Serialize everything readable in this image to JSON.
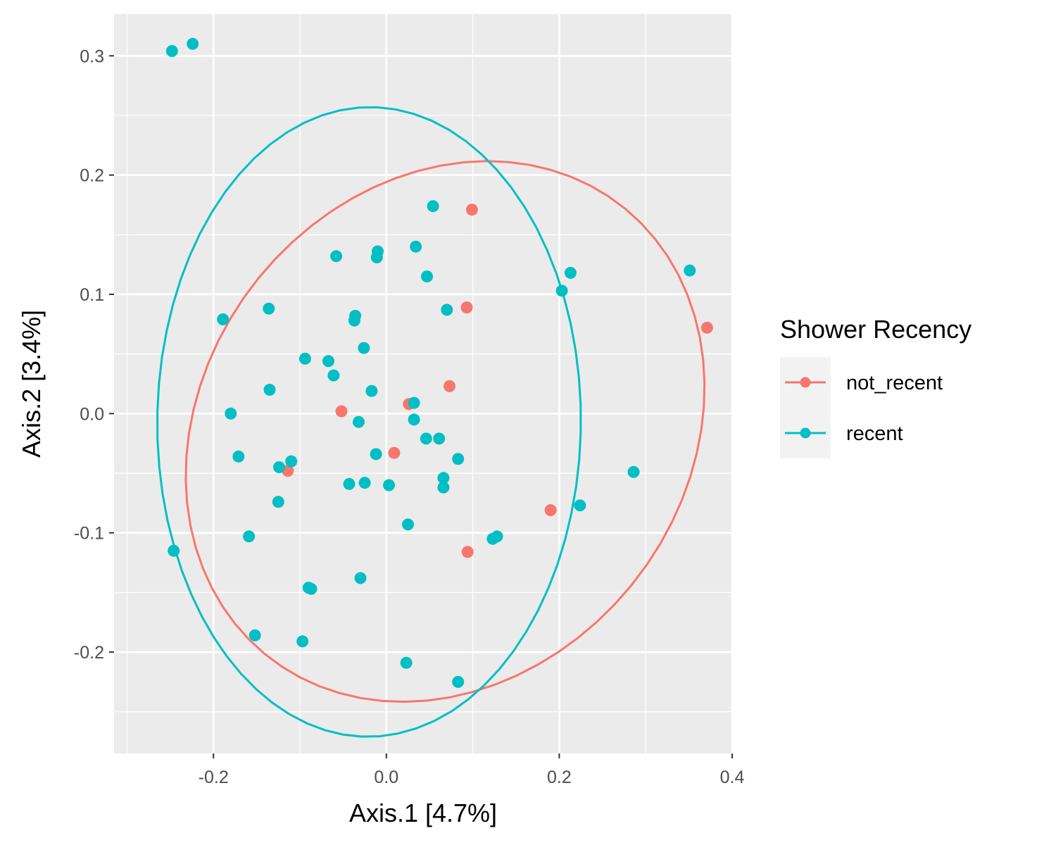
{
  "chart_data": {
    "type": "scatter",
    "title": "",
    "xlabel": "Axis.1   [4.7%]",
    "ylabel": "Axis.2   [3.4%]",
    "xlim": [
      -0.315,
      0.4
    ],
    "ylim": [
      -0.285,
      0.335
    ],
    "x_ticks": [
      -0.2,
      0.0,
      0.2,
      0.4
    ],
    "x_tick_labels": [
      "-0.2",
      "0.0",
      "0.2",
      "0.4"
    ],
    "y_ticks": [
      -0.2,
      -0.1,
      0.0,
      0.1,
      0.2,
      0.3
    ],
    "y_tick_labels": [
      "-0.2",
      "-0.1",
      "0.0",
      "0.1",
      "0.2",
      "0.3"
    ],
    "grid": true,
    "legend": {
      "title": "Shower Recency",
      "position": "right",
      "entries": [
        "not_recent",
        "recent"
      ]
    },
    "series": [
      {
        "name": "not_recent",
        "color": "#F8766D",
        "points": [
          [
            0.099,
            0.171
          ],
          [
            0.093,
            0.089
          ],
          [
            0.371,
            0.072
          ],
          [
            0.073,
            0.023
          ],
          [
            0.026,
            0.008
          ],
          [
            -0.052,
            0.002
          ],
          [
            0.009,
            -0.033
          ],
          [
            -0.114,
            -0.048
          ],
          [
            0.19,
            -0.081
          ],
          [
            0.094,
            -0.116
          ]
        ],
        "ellipse": {
          "cx": 0.068,
          "cy": -0.015,
          "rx": 0.305,
          "ry": 0.22,
          "angle_deg": 15
        }
      },
      {
        "name": "recent",
        "color": "#00BFC4",
        "points": [
          [
            -0.248,
            0.304
          ],
          [
            -0.224,
            0.31
          ],
          [
            0.054,
            0.174
          ],
          [
            -0.058,
            0.132
          ],
          [
            -0.01,
            0.136
          ],
          [
            -0.011,
            0.131
          ],
          [
            0.034,
            0.14
          ],
          [
            0.047,
            0.115
          ],
          [
            0.213,
            0.118
          ],
          [
            0.203,
            0.103
          ],
          [
            0.351,
            0.12
          ],
          [
            -0.136,
            0.088
          ],
          [
            -0.189,
            0.079
          ],
          [
            -0.036,
            0.082
          ],
          [
            -0.037,
            0.078
          ],
          [
            0.07,
            0.087
          ],
          [
            -0.026,
            0.055
          ],
          [
            -0.094,
            0.046
          ],
          [
            -0.067,
            0.044
          ],
          [
            -0.061,
            0.032
          ],
          [
            -0.135,
            0.02
          ],
          [
            -0.017,
            0.019
          ],
          [
            0.032,
            0.009
          ],
          [
            -0.18,
            0.0
          ],
          [
            -0.032,
            -0.007
          ],
          [
            0.032,
            -0.005
          ],
          [
            0.046,
            -0.021
          ],
          [
            0.061,
            -0.021
          ],
          [
            -0.171,
            -0.036
          ],
          [
            -0.012,
            -0.034
          ],
          [
            -0.11,
            -0.04
          ],
          [
            -0.124,
            -0.045
          ],
          [
            0.083,
            -0.038
          ],
          [
            0.066,
            -0.054
          ],
          [
            0.066,
            -0.062
          ],
          [
            -0.043,
            -0.059
          ],
          [
            -0.025,
            -0.058
          ],
          [
            0.003,
            -0.06
          ],
          [
            -0.125,
            -0.074
          ],
          [
            0.224,
            -0.077
          ],
          [
            0.286,
            -0.049
          ],
          [
            0.025,
            -0.093
          ],
          [
            -0.159,
            -0.103
          ],
          [
            0.123,
            -0.105
          ],
          [
            0.128,
            -0.103
          ],
          [
            -0.246,
            -0.115
          ],
          [
            -0.03,
            -0.138
          ],
          [
            -0.09,
            -0.146
          ],
          [
            -0.087,
            -0.147
          ],
          [
            -0.152,
            -0.186
          ],
          [
            -0.097,
            -0.191
          ],
          [
            0.023,
            -0.209
          ],
          [
            0.083,
            -0.225
          ]
        ],
        "ellipse": {
          "cx": -0.02,
          "cy": -0.007,
          "rx": 0.264,
          "ry": 0.245,
          "angle_deg": 88
        }
      }
    ]
  }
}
